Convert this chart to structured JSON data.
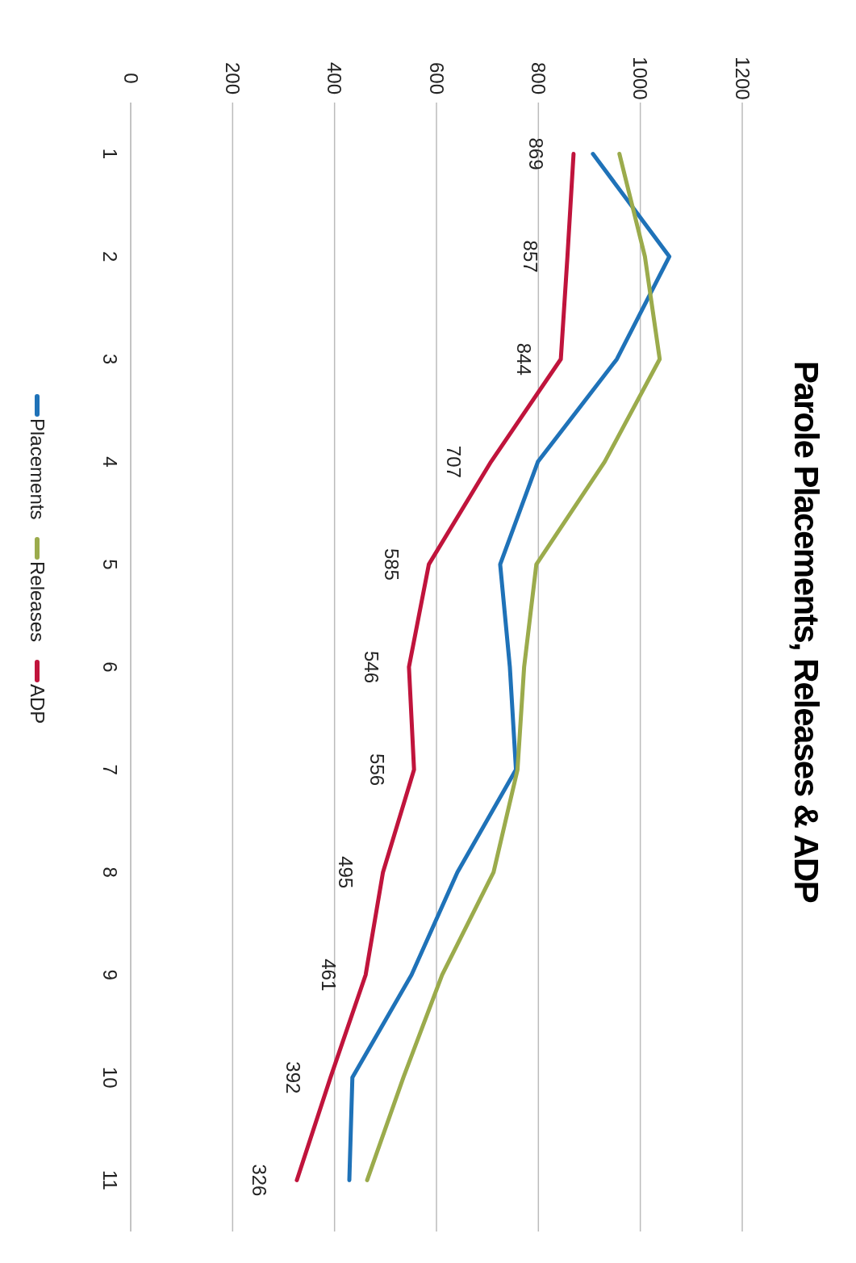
{
  "chart_data": {
    "type": "line",
    "title": "Parole Placements, Releases & ADP",
    "orientation": "horizontal",
    "categories": [
      "1",
      "2",
      "3",
      "4",
      "5",
      "6",
      "7",
      "8",
      "9",
      "10",
      "11"
    ],
    "series": [
      {
        "name": "Placements",
        "color": "#1f72b8",
        "values": [
          907,
          1057,
          954,
          799,
          725,
          744,
          756,
          641,
          551,
          435,
          429
        ]
      },
      {
        "name": "Releases",
        "color": "#9bab4c",
        "values": [
          959,
          1009,
          1038,
          930,
          796,
          772,
          759,
          712,
          611,
          535,
          464
        ]
      },
      {
        "name": "ADP",
        "color": "#c0143c",
        "values": [
          869,
          857,
          844,
          707,
          585,
          546,
          556,
          495,
          461,
          392,
          326
        ],
        "value_labels": [
          "869",
          "857",
          "844",
          "707",
          "585",
          "546",
          "556",
          "495",
          "461",
          "392",
          "326"
        ]
      }
    ],
    "xlim": [
      0,
      1200
    ],
    "xticks": [
      0,
      200,
      400,
      600,
      800,
      1000,
      1200
    ],
    "grid": "x",
    "legend": "left",
    "marker": "none",
    "line_style": "solid"
  }
}
